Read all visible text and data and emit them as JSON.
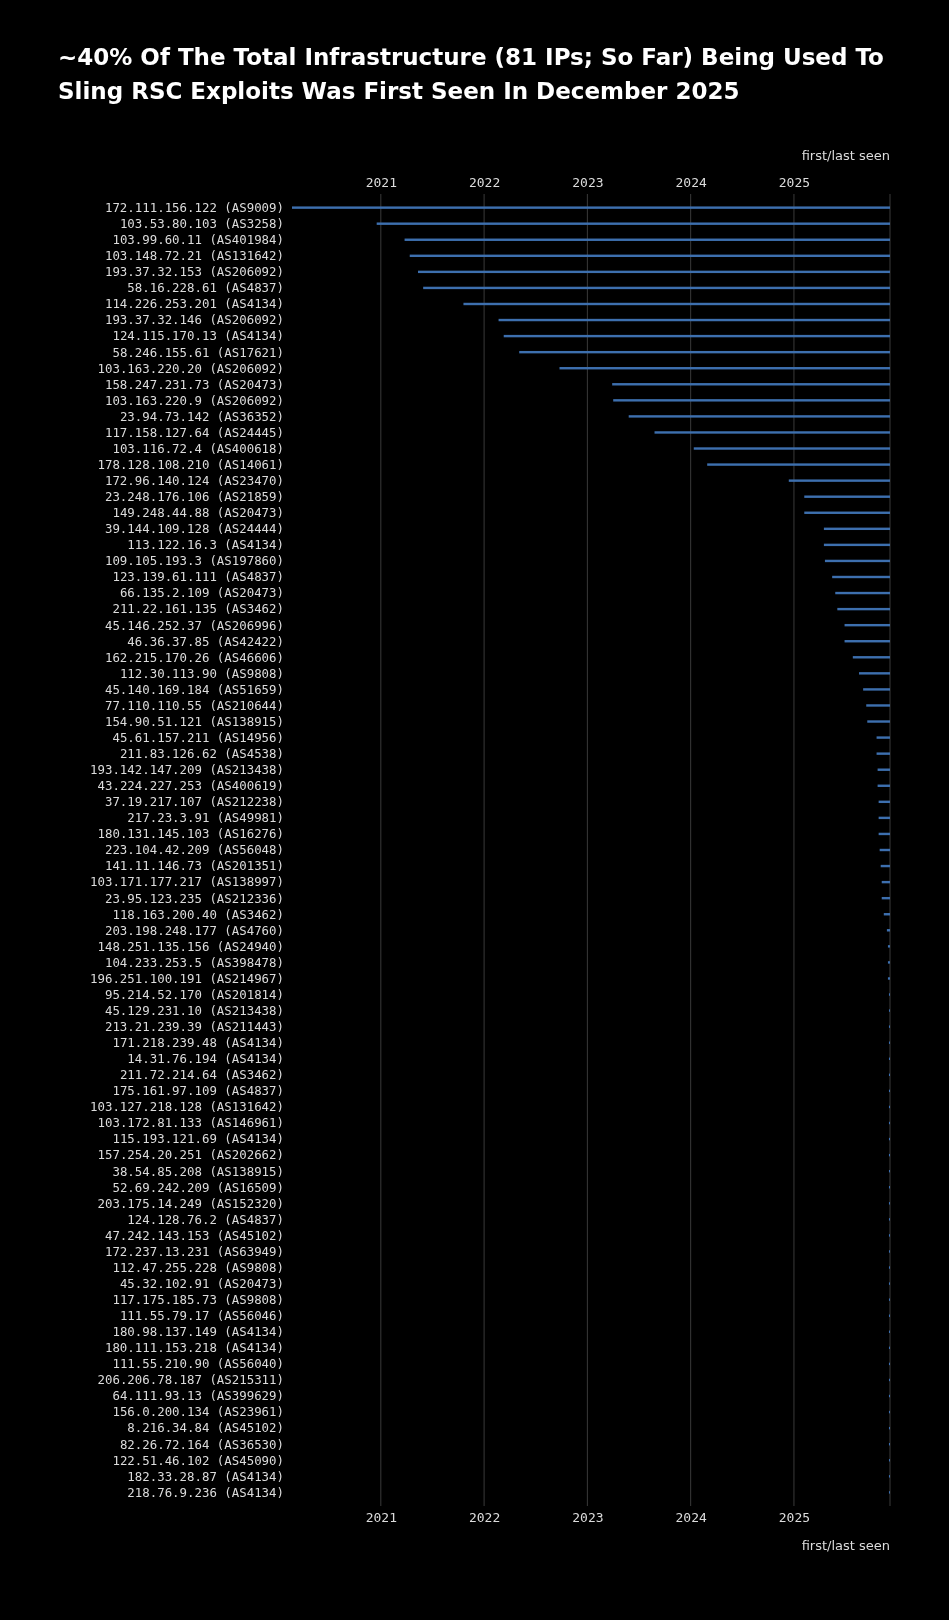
{
  "chart_data": {
    "type": "bar",
    "orientation": "horizontal",
    "title": "~40% Of The Total Infrastructure (81 IPs; So Far) Being Used To Sling RSC Exploits Was First Seen In December 2025",
    "xlabel": "first/last seen",
    "x2label": "first/last seen",
    "xlim": [
      2020.14,
      2025.93
    ],
    "xticks": [
      2021,
      2022,
      2023,
      2024,
      2025
    ],
    "x2lim": [
      2020.14,
      2025.93
    ],
    "x2ticks": [
      2021,
      2022,
      2023,
      2024,
      2025
    ],
    "grid": "x",
    "color": "#3d6fae",
    "categories": [
      "172.111.156.122 (AS9009)",
      "103.53.80.103 (AS3258)",
      "103.99.60.11 (AS401984)",
      "103.148.72.21 (AS131642)",
      "193.37.32.153 (AS206092)",
      "58.16.228.61 (AS4837)",
      "114.226.253.201 (AS4134)",
      "193.37.32.146 (AS206092)",
      "124.115.170.13 (AS4134)",
      "58.246.155.61 (AS17621)",
      "103.163.220.20 (AS206092)",
      "158.247.231.73 (AS20473)",
      "103.163.220.9 (AS206092)",
      "23.94.73.142 (AS36352)",
      "117.158.127.64 (AS24445)",
      "103.116.72.4 (AS400618)",
      "178.128.108.210 (AS14061)",
      "172.96.140.124 (AS23470)",
      "23.248.176.106 (AS21859)",
      "149.248.44.88 (AS20473)",
      "39.144.109.128 (AS24444)",
      "113.122.16.3 (AS4134)",
      "109.105.193.3 (AS197860)",
      "123.139.61.111 (AS4837)",
      "66.135.2.109 (AS20473)",
      "211.22.161.135 (AS3462)",
      "45.146.252.37 (AS206996)",
      "46.36.37.85 (AS42422)",
      "162.215.170.26 (AS46606)",
      "112.30.113.90 (AS9808)",
      "45.140.169.184 (AS51659)",
      "77.110.110.55 (AS210644)",
      "154.90.51.121 (AS138915)",
      "45.61.157.211 (AS14956)",
      "211.83.126.62 (AS4538)",
      "193.142.147.209 (AS213438)",
      "43.224.227.253 (AS400619)",
      "37.19.217.107 (AS212238)",
      "217.23.3.91 (AS49981)",
      "180.131.145.103 (AS16276)",
      "223.104.42.209 (AS56048)",
      "141.11.146.73 (AS201351)",
      "103.171.177.217 (AS138997)",
      "23.95.123.235 (AS212336)",
      "118.163.200.40 (AS3462)",
      "203.198.248.177 (AS4760)",
      "148.251.135.156 (AS24940)",
      "104.233.253.5 (AS398478)",
      "196.251.100.191 (AS214967)",
      "95.214.52.170 (AS201814)",
      "45.129.231.10 (AS213438)",
      "213.21.239.39 (AS211443)",
      "171.218.239.48 (AS4134)",
      "14.31.76.194 (AS4134)",
      "211.72.214.64 (AS3462)",
      "175.161.97.109 (AS4837)",
      "103.127.218.128 (AS131642)",
      "103.172.81.133 (AS146961)",
      "115.193.121.69 (AS4134)",
      "157.254.20.251 (AS202662)",
      "38.54.85.208 (AS138915)",
      "52.69.242.209 (AS16509)",
      "203.175.14.249 (AS152320)",
      "124.128.76.2 (AS4837)",
      "47.242.143.153 (AS45102)",
      "172.237.13.231 (AS63949)",
      "112.47.255.228 (AS9808)",
      "45.32.102.91 (AS20473)",
      "117.175.185.73 (AS9808)",
      "111.55.79.17 (AS56046)",
      "180.98.137.149 (AS4134)",
      "180.111.153.218 (AS4134)",
      "111.55.210.90 (AS56040)",
      "206.206.78.187 (AS215311)",
      "64.111.93.13 (AS399629)",
      "156.0.200.134 (AS23961)",
      "8.216.34.84 (AS45102)",
      "82.26.72.164 (AS36530)",
      "122.51.46.102 (AS45090)",
      "182.33.28.87 (AS4134)",
      "218.76.9.236 (AS4134)"
    ],
    "base": [
      2020.14,
      2020.96,
      2021.23,
      2021.28,
      2021.36,
      2021.41,
      2021.8,
      2022.14,
      2022.19,
      2022.34,
      2022.73,
      2023.24,
      2023.25,
      2023.4,
      2023.65,
      2024.03,
      2024.16,
      2024.95,
      2025.1,
      2025.1,
      2025.29,
      2025.29,
      2025.3,
      2025.37,
      2025.4,
      2025.42,
      2025.49,
      2025.49,
      2025.57,
      2025.63,
      2025.67,
      2025.7,
      2025.71,
      2025.8,
      2025.8,
      2025.81,
      2025.81,
      2025.82,
      2025.82,
      2025.82,
      2025.83,
      2025.84,
      2025.85,
      2025.85,
      2025.87,
      2025.9,
      2025.91,
      2025.91,
      2025.91,
      2025.92,
      2025.92,
      2025.92,
      2025.92,
      2025.92,
      2025.92,
      2025.92,
      2025.92,
      2025.92,
      2025.92,
      2025.92,
      2025.92,
      2025.92,
      2025.92,
      2025.92,
      2025.92,
      2025.92,
      2025.92,
      2025.92,
      2025.92,
      2025.92,
      2025.92,
      2025.92,
      2025.92,
      2025.92,
      2025.92,
      2025.92,
      2025.92,
      2025.92,
      2025.92,
      2025.92,
      2025.92
    ],
    "values": [
      5.79,
      4.97,
      4.7,
      4.65,
      4.57,
      4.52,
      4.13,
      3.79,
      3.74,
      3.59,
      3.2,
      2.69,
      2.68,
      2.53,
      2.28,
      1.9,
      1.77,
      0.98,
      0.83,
      0.83,
      0.64,
      0.64,
      0.63,
      0.56,
      0.53,
      0.51,
      0.44,
      0.44,
      0.36,
      0.3,
      0.26,
      0.23,
      0.22,
      0.13,
      0.13,
      0.12,
      0.12,
      0.11,
      0.11,
      0.11,
      0.1,
      0.09,
      0.08,
      0.08,
      0.06,
      0.03,
      0.02,
      0.02,
      0.02,
      0.01,
      0.01,
      0.01,
      0.01,
      0.01,
      0.01,
      0.01,
      0.01,
      0.01,
      0.01,
      0.01,
      0.01,
      0.01,
      0.01,
      0.01,
      0.01,
      0.01,
      0.01,
      0.01,
      0.01,
      0.01,
      0.01,
      0.01,
      0.01,
      0.01,
      0.01,
      0.01,
      0.01,
      0.01,
      0.01,
      0.01,
      0.01
    ]
  }
}
